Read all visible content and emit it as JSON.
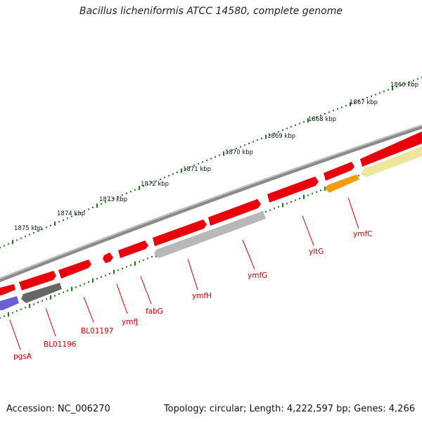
{
  "title": "Bacillus licheniformis ATCC 14580, complete genome",
  "footer": {
    "accession": "Accession: NC_006270",
    "topology": "Topology: circular; Length: 4,222,597 bp; Genes: 4,266"
  },
  "kbp_ticks": [
    {
      "label": "1866 kbp"
    },
    {
      "label": "1867 kbp"
    },
    {
      "label": "1868 kbp"
    },
    {
      "label": "1869 kbp"
    },
    {
      "label": "1870 kbp"
    },
    {
      "label": "1871 kbp"
    },
    {
      "label": "1872 kbp"
    },
    {
      "label": "1873 kbp"
    },
    {
      "label": "1874 kbp"
    },
    {
      "label": "1875 kbp"
    }
  ],
  "gene_labels": [
    {
      "name": "ymfC"
    },
    {
      "name": "yitG"
    },
    {
      "name": "ymfG"
    },
    {
      "name": "ymfH"
    },
    {
      "name": "fabG"
    },
    {
      "name": "ymfJ"
    },
    {
      "name": "BL01197"
    },
    {
      "name": "BL01196"
    },
    {
      "name": "pgsA"
    }
  ],
  "colors": {
    "backbone": "#8a8a8a",
    "forward_gene": "#e8000b",
    "pseudo_gray": "#b8b8b8",
    "dark_gray": "#666666",
    "orange": "#f49a0c",
    "yellow": "#ede79a",
    "purple": "#6a5fd0",
    "tick": "#1a7a1a",
    "label": "#cc0000"
  }
}
